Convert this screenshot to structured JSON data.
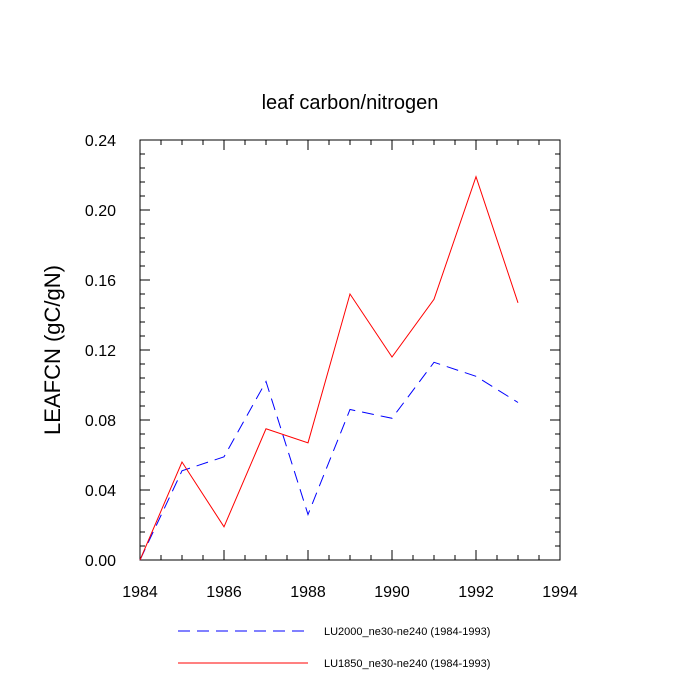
{
  "chart_data": {
    "type": "line",
    "title": "leaf carbon/nitrogen",
    "xlabel": "",
    "ylabel": "LEAFCN  (gC/gN)",
    "xlim": [
      1984,
      1994
    ],
    "ylim": [
      0.0,
      0.24
    ],
    "xticks": [
      1984,
      1986,
      1988,
      1990,
      1992,
      1994
    ],
    "xtick_labels": [
      "1984",
      "1986",
      "1988",
      "1990",
      "1992",
      "1994"
    ],
    "yticks": [
      0.0,
      0.04,
      0.08,
      0.12,
      0.16,
      0.2,
      0.24
    ],
    "ytick_labels": [
      "0.00",
      "0.04",
      "0.08",
      "0.12",
      "0.16",
      "0.20",
      "0.24"
    ],
    "x": [
      1984,
      1985,
      1986,
      1987,
      1988,
      1989,
      1990,
      1991,
      1992,
      1993
    ],
    "series": [
      {
        "name": "LU2000_ne30-ne240 (1984-1993)",
        "color": "#0000ff",
        "style": "dashed",
        "values": [
          0.0,
          0.051,
          0.059,
          0.102,
          0.026,
          0.086,
          0.081,
          0.113,
          0.105,
          0.09
        ]
      },
      {
        "name": "LU1850_ne30-ne240 (1984-1993)",
        "color": "#ff0000",
        "style": "solid",
        "values": [
          0.0,
          0.056,
          0.019,
          0.075,
          0.067,
          0.152,
          0.116,
          0.149,
          0.219,
          0.147
        ]
      }
    ],
    "grid": false,
    "legend_position": "bottom"
  }
}
